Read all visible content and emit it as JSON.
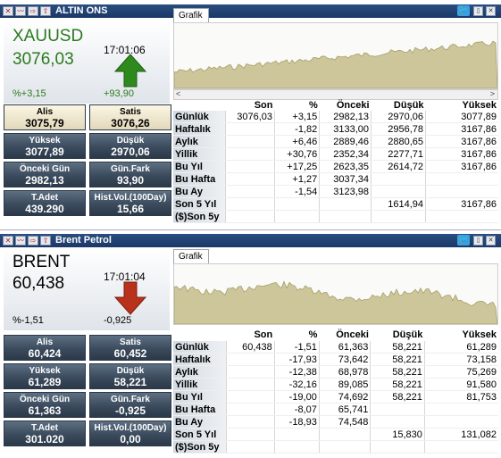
{
  "panels": [
    {
      "title": "ALTIN ONS",
      "symbol": "XAUUSD",
      "price": "3076,03",
      "time": "17:01:06",
      "pct": "%+3,15",
      "change": "+93,90",
      "direction": "up",
      "color": "#2b7a1e",
      "arrow_color": "#2f8a1d",
      "chart_tab": "Grafik",
      "boxes": [
        {
          "label": "Alis",
          "value": "3075,79"
        },
        {
          "label": "Satis",
          "value": "3076,26"
        },
        {
          "label": "Yüksek",
          "value": "3077,89"
        },
        {
          "label": "Düşük",
          "value": "2970,06"
        },
        {
          "label": "Önceki Gün",
          "value": "2982,13"
        },
        {
          "label": "Gün.Fark",
          "value": "93,90"
        },
        {
          "label": "T.Adet",
          "value": "439.290"
        },
        {
          "label": "Hist.Vol.(100Day)",
          "value": "15,66"
        }
      ],
      "table_headers": [
        "",
        "Son",
        "%",
        "Önceki",
        "Düşük",
        "Yüksek"
      ],
      "rows": [
        [
          "Günlük",
          "3076,03",
          "+3,15",
          "2982,13",
          "2970,06",
          "3077,89"
        ],
        [
          "Haftalık",
          "",
          "-1,82",
          "3133,00",
          "2956,78",
          "3167,86"
        ],
        [
          "Aylık",
          "",
          "+6,46",
          "2889,46",
          "2880,65",
          "3167,86"
        ],
        [
          "Yillik",
          "",
          "+30,76",
          "2352,34",
          "2277,71",
          "3167,86"
        ],
        [
          "Bu Yıl",
          "",
          "+17,25",
          "2623,35",
          "2614,72",
          "3167,86"
        ],
        [
          "Bu Hafta",
          "",
          "+1,27",
          "3037,34",
          "",
          ""
        ],
        [
          "Bu Ay",
          "",
          "-1,54",
          "3123,98",
          "",
          ""
        ],
        [
          "Son 5 Yıl",
          "",
          "",
          "",
          "1614,94",
          "3167,86"
        ],
        [
          "($)Son 5y",
          "",
          "",
          "",
          "",
          ""
        ]
      ]
    },
    {
      "title": "Brent Petrol",
      "symbol": "BRENT",
      "price": "60,438",
      "time": "17:01:04",
      "pct": "%-1,51",
      "change": "-0,925",
      "direction": "down",
      "color": "#000000",
      "arrow_color": "#b8321c",
      "chart_tab": "Grafik",
      "boxes": [
        {
          "label": "Alis",
          "value": "60,424"
        },
        {
          "label": "Satis",
          "value": "60,452"
        },
        {
          "label": "Yüksek",
          "value": "61,289"
        },
        {
          "label": "Düşük",
          "value": "58,221"
        },
        {
          "label": "Önceki Gün",
          "value": "61,363"
        },
        {
          "label": "Gün.Fark",
          "value": "-0,925"
        },
        {
          "label": "T.Adet",
          "value": "301.020"
        },
        {
          "label": "Hist.Vol.(100Day)",
          "value": "0,00"
        }
      ],
      "table_headers": [
        "",
        "Son",
        "%",
        "Önceki",
        "Düşük",
        "Yüksek"
      ],
      "rows": [
        [
          "Günlük",
          "60,438",
          "-1,51",
          "61,363",
          "58,221",
          "61,289"
        ],
        [
          "Haftalık",
          "",
          "-17,93",
          "73,642",
          "58,221",
          "73,158"
        ],
        [
          "Aylık",
          "",
          "-12,38",
          "68,978",
          "58,221",
          "75,269"
        ],
        [
          "Yillik",
          "",
          "-32,16",
          "89,085",
          "58,221",
          "91,580"
        ],
        [
          "Bu Yıl",
          "",
          "-19,00",
          "74,692",
          "58,221",
          "81,753"
        ],
        [
          "Bu Hafta",
          "",
          "-8,07",
          "65,741",
          "",
          ""
        ],
        [
          "Bu Ay",
          "",
          "-18,93",
          "74,548",
          "",
          ""
        ],
        [
          "Son 5 Yıl",
          "",
          "",
          "",
          "15,830",
          "131,082"
        ],
        [
          "($)Son 5y",
          "",
          "",
          "",
          "",
          ""
        ]
      ]
    }
  ]
}
